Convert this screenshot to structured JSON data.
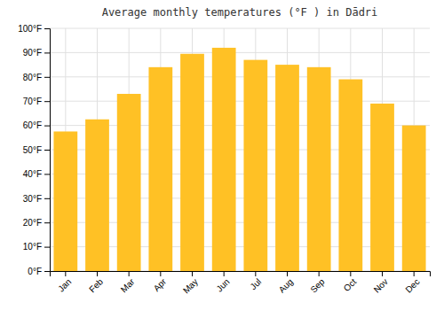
{
  "chart_data": {
    "type": "bar",
    "title": "Average monthly temperatures (°F ) in Dādri",
    "categories": [
      "Jan",
      "Feb",
      "Mar",
      "Apr",
      "May",
      "Jun",
      "Jul",
      "Aug",
      "Sep",
      "Oct",
      "Nov",
      "Dec"
    ],
    "values": [
      57.5,
      62.5,
      73,
      84,
      89.5,
      92,
      87,
      85,
      84,
      79,
      69,
      60
    ],
    "color": "#FFC125",
    "ylim": [
      0,
      100
    ],
    "yticks": [
      {
        "value": 0,
        "label": "0°F"
      },
      {
        "value": 10,
        "label": "10°F"
      },
      {
        "value": 20,
        "label": "20°F"
      },
      {
        "value": 30,
        "label": "30°F"
      },
      {
        "value": 40,
        "label": "40°F"
      },
      {
        "value": 50,
        "label": "50°F"
      },
      {
        "value": 60,
        "label": "60°F"
      },
      {
        "value": 70,
        "label": "70°F"
      },
      {
        "value": 80,
        "label": "80°F"
      },
      {
        "value": 90,
        "label": "90°F"
      },
      {
        "value": 100,
        "label": "100°F"
      }
    ],
    "grid": true
  }
}
